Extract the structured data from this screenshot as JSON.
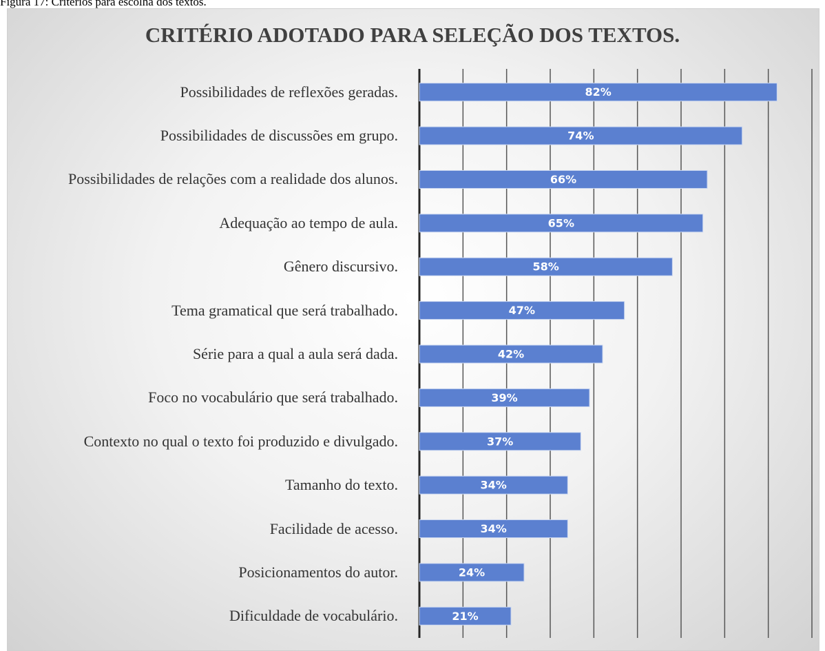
{
  "caption": "Figura 17: Critérios para escolha dos textos.",
  "chart_data": {
    "type": "bar",
    "orientation": "horizontal",
    "title": "CRITÉRIO ADOTADO PARA SELEÇÃO DOS TEXTOS.",
    "categories": [
      "Possibilidades de reflexões geradas.",
      "Possibilidades de discussões em grupo.",
      "Possibilidades de relações com a realidade dos alunos.",
      "Adequação ao tempo de aula.",
      "Gênero discursivo.",
      "Tema gramatical que será trabalhado.",
      "Série para a qual a aula será dada.",
      "Foco no vocabulário que será trabalhado.",
      "Contexto no qual o texto foi produzido e divulgado.",
      "Tamanho do texto.",
      "Facilidade de acesso.",
      "Posicionamentos do autor.",
      "Dificuldade de vocabulário."
    ],
    "values": [
      82,
      74,
      66,
      65,
      58,
      47,
      42,
      39,
      37,
      34,
      34,
      24,
      21
    ],
    "value_labels": [
      "82%",
      "74%",
      "66%",
      "65%",
      "58%",
      "47%",
      "42%",
      "39%",
      "37%",
      "34%",
      "34%",
      "24%",
      "21%"
    ],
    "color": "#5b80d0",
    "xlim": [
      0,
      90
    ],
    "xticks": [
      0,
      10,
      20,
      30,
      40,
      50,
      60,
      70,
      80,
      90
    ],
    "grid": true
  }
}
